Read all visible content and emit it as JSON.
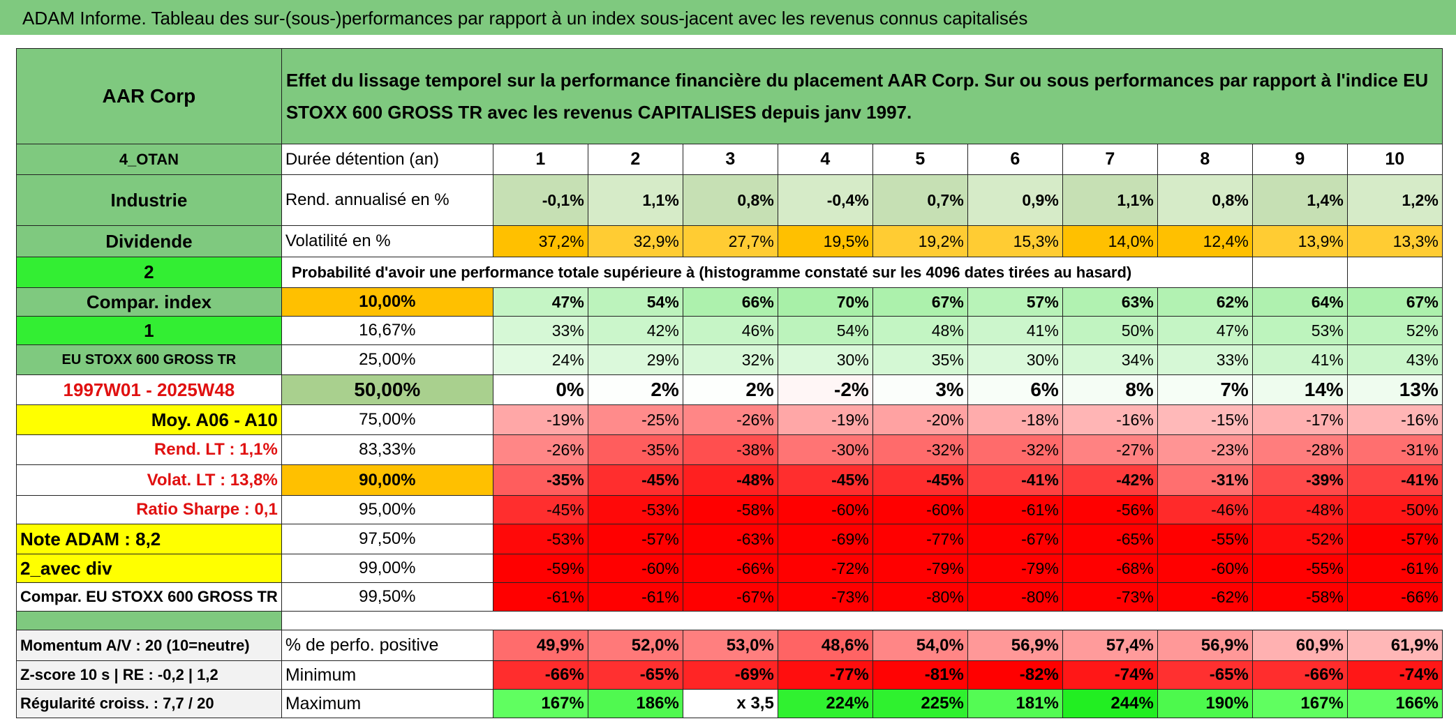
{
  "header": {
    "title": "ADAM Informe. Tableau des sur-(sous-)performances par rapport à un index sous-jacent avec les revenus connus capitalisés"
  },
  "table": {
    "company": "AAR Corp",
    "description": "Effet du lissage temporel sur la performance financière du placement AAR Corp. Sur ou sous performances par rapport à l'indice EU STOXX 600 GROSS TR avec les revenus CAPITALISES depuis janv 1997.",
    "rows": [
      [
        "4_OTAN",
        "Durée détention (an)",
        "1",
        "2",
        "3",
        "4",
        "5",
        "6",
        "7",
        "8",
        "9",
        "10"
      ],
      [
        "Industrie",
        "Rend. annualisé en %",
        "-0,1%",
        "1,1%",
        "0,8%",
        "-0,4%",
        "0,7%",
        "0,9%",
        "1,1%",
        "0,8%",
        "1,4%",
        "1,2%"
      ],
      [
        "Dividende",
        "Volatilité en %",
        "37,2%",
        "32,9%",
        "27,7%",
        "19,5%",
        "19,2%",
        "15,3%",
        "14,0%",
        "12,4%",
        "13,9%",
        "13,3%"
      ],
      [
        "2",
        "Probabilité d'avoir une performance totale supérieure à (histogramme constaté sur les 4096 dates tirées au hasard)"
      ],
      [
        "Compar. index",
        "10,00%",
        "47%",
        "54%",
        "66%",
        "70%",
        "67%",
        "57%",
        "63%",
        "62%",
        "64%",
        "67%"
      ],
      [
        "1",
        "16,67%",
        "33%",
        "42%",
        "46%",
        "54%",
        "48%",
        "41%",
        "50%",
        "47%",
        "53%",
        "52%"
      ],
      [
        "EU STOXX 600 GROSS TR",
        "25,00%",
        "24%",
        "29%",
        "32%",
        "30%",
        "35%",
        "30%",
        "34%",
        "33%",
        "41%",
        "43%"
      ],
      [
        "1997W01 - 2025W48",
        "50,00%",
        "0%",
        "2%",
        "2%",
        "-2%",
        "3%",
        "6%",
        "8%",
        "7%",
        "14%",
        "13%"
      ],
      [
        "Moy. A06 - A10",
        "75,00%",
        "-19%",
        "-25%",
        "-26%",
        "-19%",
        "-20%",
        "-18%",
        "-16%",
        "-15%",
        "-17%",
        "-16%"
      ],
      [
        "Rend. LT :   1,1%",
        "83,33%",
        "-26%",
        "-35%",
        "-38%",
        "-30%",
        "-32%",
        "-32%",
        "-27%",
        "-23%",
        "-28%",
        "-31%"
      ],
      [
        "Volat. LT :   13,8%",
        "90,00%",
        "-35%",
        "-45%",
        "-48%",
        "-45%",
        "-45%",
        "-41%",
        "-42%",
        "-31%",
        "-39%",
        "-41%"
      ],
      [
        "Ratio Sharpe :   0,1",
        "95,00%",
        "-45%",
        "-53%",
        "-58%",
        "-60%",
        "-60%",
        "-61%",
        "-56%",
        "-46%",
        "-48%",
        "-50%"
      ],
      [
        "Note ADAM : 8,2",
        "97,50%",
        "-53%",
        "-57%",
        "-63%",
        "-69%",
        "-77%",
        "-67%",
        "-65%",
        "-55%",
        "-52%",
        "-57%"
      ],
      [
        "2_avec div",
        "99,00%",
        "-59%",
        "-60%",
        "-66%",
        "-72%",
        "-79%",
        "-79%",
        "-68%",
        "-60%",
        "-55%",
        "-61%"
      ],
      [
        "Compar. EU STOXX 600 GROSS TR",
        "99,50%",
        "-61%",
        "-61%",
        "-67%",
        "-73%",
        "-80%",
        "-80%",
        "-73%",
        "-62%",
        "-58%",
        "-66%"
      ]
    ],
    "footer_rows": [
      [
        "Momentum A/V : 20 (10=neutre)",
        "% de perfo. positive",
        "49,9%",
        "52,0%",
        "53,0%",
        "48,6%",
        "54,0%",
        "56,9%",
        "57,4%",
        "56,9%",
        "60,9%",
        "61,9%"
      ],
      [
        "Z-score 10 s | RE : -0,2 | 1,2",
        "Minimum",
        "-66%",
        "-65%",
        "-69%",
        "-77%",
        "-81%",
        "-82%",
        "-74%",
        "-65%",
        "-66%",
        "-74%"
      ],
      [
        "Régularité croiss. : 7,7 / 20",
        "Maximum",
        "167%",
        "186%",
        "x 3,5",
        "224%",
        "225%",
        "181%",
        "244%",
        "190%",
        "167%",
        "166%"
      ]
    ]
  }
}
